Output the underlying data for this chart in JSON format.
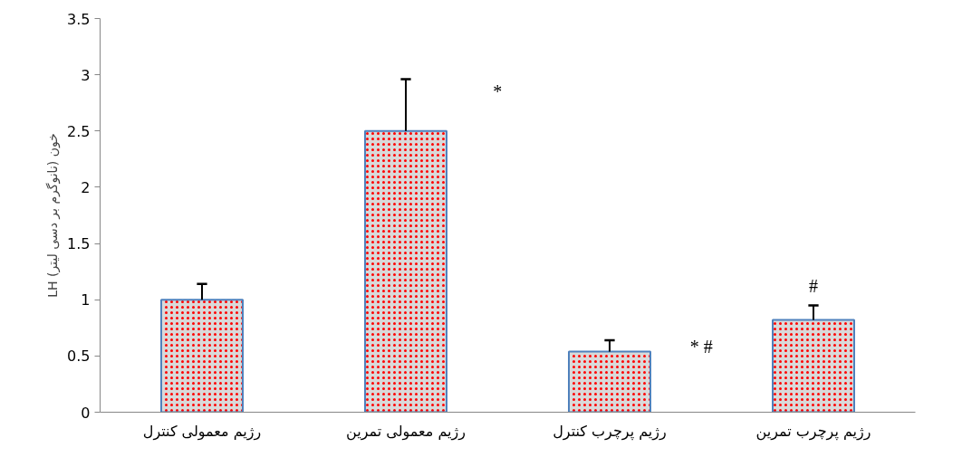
{
  "chart_data": {
    "type": "bar",
    "ylabel": "LH خون (نانوگرم بر دسی لیتر)",
    "categories": [
      "رژیم معمولی کنترل",
      "رژیم معمولی تمرین",
      "رژیم پرچرب کنترل",
      "رژیم پرچرب تمرین"
    ],
    "values": [
      1.0,
      2.5,
      0.54,
      0.82
    ],
    "errors": [
      [
        1.0,
        1.14
      ],
      [
        2.5,
        2.96
      ],
      [
        0.54,
        0.64
      ],
      [
        0.82,
        0.95
      ]
    ],
    "color": "#d9d9d9",
    "ylim": [
      0,
      3.5
    ],
    "yticks": [
      0,
      0.5,
      1,
      1.5,
      2,
      2.5,
      3,
      3.5
    ],
    "grid": false,
    "annotations": [
      "*",
      "* #",
      "#"
    ]
  }
}
